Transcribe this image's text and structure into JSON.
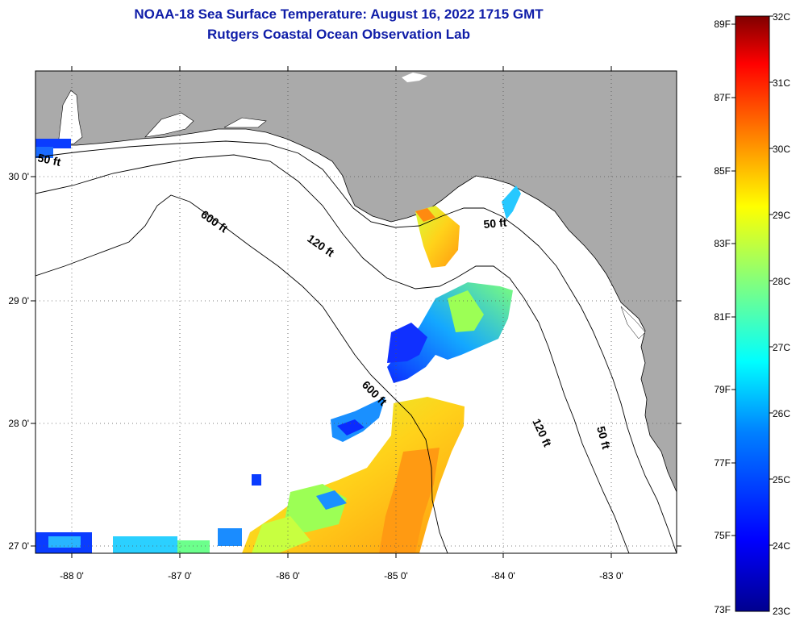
{
  "title": {
    "line1": "NOAA-18 Sea Surface Temperature:  August 16, 2022 1715 GMT",
    "line2": "Rutgers Coastal Ocean Observation Lab"
  },
  "axes": {
    "lon_labels": [
      "-88 0'",
      "-87 0'",
      "-86 0'",
      "-85 0'",
      "-84 0'",
      "-83 0'"
    ],
    "lat_labels": [
      "30 0'",
      "29 0'",
      "28 0'",
      "27 0'"
    ]
  },
  "contours": {
    "label_50ft": "50 ft",
    "label_120ft": "120 ft",
    "label_600ft": "600 ft"
  },
  "colorbar": {
    "f_labels": [
      "89F",
      "87F",
      "85F",
      "83F",
      "81F",
      "79F",
      "77F",
      "75F",
      "73F"
    ],
    "c_labels": [
      "32C",
      "31C",
      "30C",
      "29C",
      "28C",
      "27C",
      "26C",
      "25C",
      "24C",
      "23C"
    ],
    "colors": [
      "#00008f",
      "#0000ff",
      "#0080ff",
      "#00ffff",
      "#80ff80",
      "#ffff00",
      "#ff8000",
      "#ff0000",
      "#800000"
    ]
  },
  "colors": {
    "title": "#0f1da8",
    "land": "#aaaaaa",
    "ocean": "#ffffff"
  }
}
